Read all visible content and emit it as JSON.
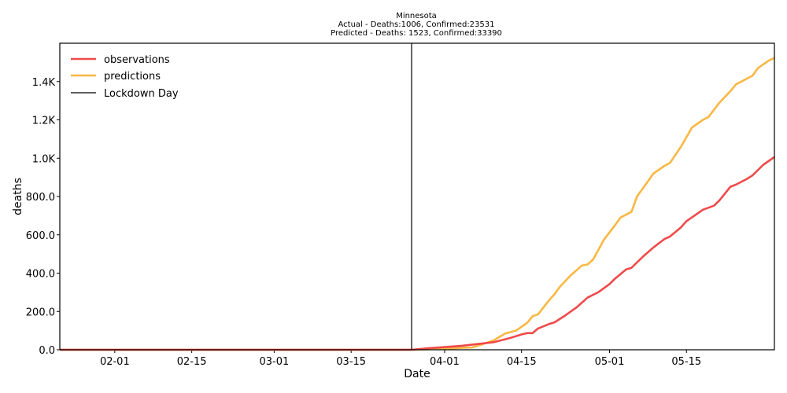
{
  "chart_data": {
    "type": "line",
    "title": "Minnesota",
    "subtitle_lines": [
      "Actual - Deaths:1006,  Confirmed:23531",
      "Predicted - Deaths:  1523, Confirmed:33390"
    ],
    "xlabel": "Date",
    "ylabel": "deaths",
    "x_start": "2020-01-22",
    "x_end": "2020-05-31",
    "ylim": [
      0,
      1600
    ],
    "x_ticks": [
      {
        "date": "2020-02-01",
        "label": "02-01"
      },
      {
        "date": "2020-02-15",
        "label": "02-15"
      },
      {
        "date": "2020-03-01",
        "label": "03-01"
      },
      {
        "date": "2020-03-15",
        "label": "03-15"
      },
      {
        "date": "2020-04-01",
        "label": "04-01"
      },
      {
        "date": "2020-04-15",
        "label": "04-15"
      },
      {
        "date": "2020-05-01",
        "label": "05-01"
      },
      {
        "date": "2020-05-15",
        "label": "05-15"
      }
    ],
    "y_ticks": [
      {
        "value": 0,
        "label": "0.0"
      },
      {
        "value": 200,
        "label": "200.0"
      },
      {
        "value": 400,
        "label": "400.0"
      },
      {
        "value": 600,
        "label": "600.0"
      },
      {
        "value": 800,
        "label": "800.0"
      },
      {
        "value": 1000,
        "label": "1.0K"
      },
      {
        "value": 1200,
        "label": "1.2K"
      },
      {
        "value": 1400,
        "label": "1.4K"
      }
    ],
    "lockdown": {
      "name": "Lockdown Day",
      "date": "2020-03-26",
      "color": "#000000"
    },
    "legend_position": "top-left",
    "grid": false,
    "series": [
      {
        "name": "observations",
        "color": "#ef4a4a",
        "points": [
          [
            "2020-01-22",
            0
          ],
          [
            "2020-03-20",
            0
          ],
          [
            "2020-03-26",
            0
          ],
          [
            "2020-03-29",
            8
          ],
          [
            "2020-04-01",
            14
          ],
          [
            "2020-04-04",
            20
          ],
          [
            "2020-04-07",
            30
          ],
          [
            "2020-04-10",
            40
          ],
          [
            "2020-04-13",
            62
          ],
          [
            "2020-04-15",
            80
          ],
          [
            "2020-04-16",
            87
          ],
          [
            "2020-04-17",
            87
          ],
          [
            "2020-04-18",
            111
          ],
          [
            "2020-04-20",
            134
          ],
          [
            "2020-04-21",
            143
          ],
          [
            "2020-04-23",
            180
          ],
          [
            "2020-04-25",
            221
          ],
          [
            "2020-04-27",
            272
          ],
          [
            "2020-04-29",
            301
          ],
          [
            "2020-05-01",
            343
          ],
          [
            "2020-05-02",
            371
          ],
          [
            "2020-05-04",
            419
          ],
          [
            "2020-05-05",
            428
          ],
          [
            "2020-05-07",
            484
          ],
          [
            "2020-05-09",
            534
          ],
          [
            "2020-05-11",
            578
          ],
          [
            "2020-05-12",
            591
          ],
          [
            "2020-05-14",
            639
          ],
          [
            "2020-05-15",
            671
          ],
          [
            "2020-05-17",
            711
          ],
          [
            "2020-05-18",
            731
          ],
          [
            "2020-05-20",
            752
          ],
          [
            "2020-05-21",
            780
          ],
          [
            "2020-05-23",
            851
          ],
          [
            "2020-05-24",
            862
          ],
          [
            "2020-05-26",
            892
          ],
          [
            "2020-05-27",
            910
          ],
          [
            "2020-05-29",
            966
          ],
          [
            "2020-05-31",
            1006
          ]
        ]
      },
      {
        "name": "predictions",
        "color": "#f8b843",
        "points": [
          [
            "2020-01-22",
            0
          ],
          [
            "2020-03-26",
            0
          ],
          [
            "2020-04-01",
            5
          ],
          [
            "2020-04-04",
            10
          ],
          [
            "2020-04-06",
            12
          ],
          [
            "2020-04-08",
            30
          ],
          [
            "2020-04-10",
            50
          ],
          [
            "2020-04-12",
            85
          ],
          [
            "2020-04-14",
            100
          ],
          [
            "2020-04-16",
            140
          ],
          [
            "2020-04-17",
            175
          ],
          [
            "2020-04-18",
            185
          ],
          [
            "2020-04-20",
            258
          ],
          [
            "2020-04-21",
            290
          ],
          [
            "2020-04-22",
            330
          ],
          [
            "2020-04-24",
            390
          ],
          [
            "2020-04-26",
            440
          ],
          [
            "2020-04-27",
            445
          ],
          [
            "2020-04-28",
            470
          ],
          [
            "2020-04-30",
            575
          ],
          [
            "2020-05-02",
            650
          ],
          [
            "2020-05-03",
            690
          ],
          [
            "2020-05-05",
            720
          ],
          [
            "2020-05-06",
            800
          ],
          [
            "2020-05-08",
            880
          ],
          [
            "2020-05-09",
            920
          ],
          [
            "2020-05-11",
            960
          ],
          [
            "2020-05-12",
            975
          ],
          [
            "2020-05-14",
            1060
          ],
          [
            "2020-05-16",
            1160
          ],
          [
            "2020-05-18",
            1200
          ],
          [
            "2020-05-19",
            1215
          ],
          [
            "2020-05-21",
            1290
          ],
          [
            "2020-05-23",
            1350
          ],
          [
            "2020-05-24",
            1385
          ],
          [
            "2020-05-27",
            1430
          ],
          [
            "2020-05-28",
            1470
          ],
          [
            "2020-05-30",
            1510
          ],
          [
            "2020-05-31",
            1523
          ]
        ]
      }
    ]
  }
}
